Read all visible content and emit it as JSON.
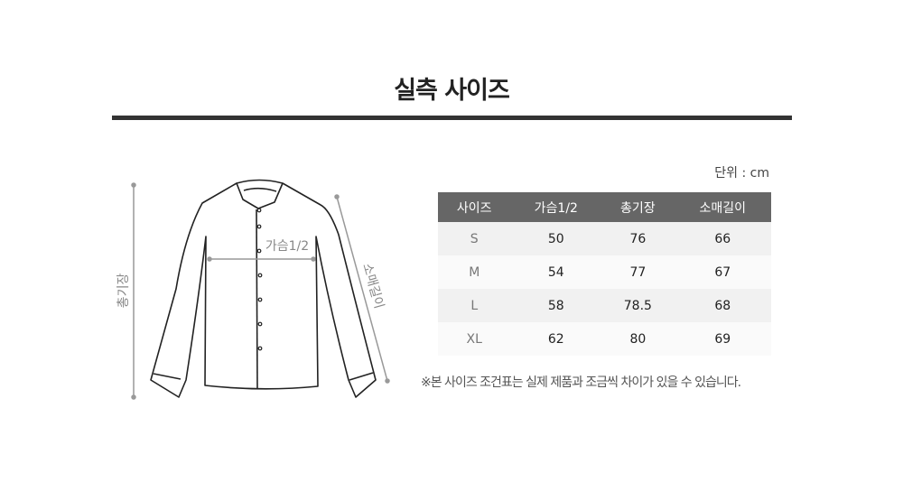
{
  "title": "실측 사이즈",
  "unit": "단위 : cm",
  "diagram": {
    "length_label": "총기장",
    "chest_label": "가슴1/2",
    "sleeve_label": "소매길이"
  },
  "table": {
    "headers": [
      "사이즈",
      "가슴1/2",
      "총기장",
      "소매길이"
    ],
    "rows": [
      [
        "S",
        "50",
        "76",
        "66"
      ],
      [
        "M",
        "54",
        "77",
        "67"
      ],
      [
        "L",
        "58",
        "78.5",
        "68"
      ],
      [
        "XL",
        "62",
        "80",
        "69"
      ]
    ]
  },
  "note": "※본 사이즈 조건표는 실제 제품과 조금씩 차이가 있을 수 있습니다.",
  "colors": {
    "header_bg": "#666666",
    "title_bar": "#333333"
  }
}
